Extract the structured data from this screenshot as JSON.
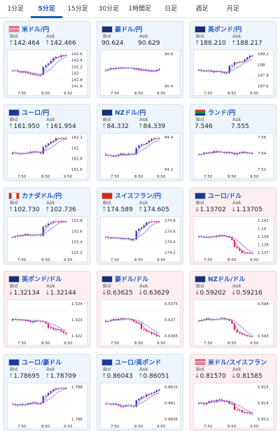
{
  "tabs": [
    {
      "label": "1分足",
      "active": false
    },
    {
      "label": "5分足",
      "active": true
    },
    {
      "label": "15分足",
      "active": false
    },
    {
      "label": "30分足",
      "active": false
    },
    {
      "label": "1時間足",
      "active": false
    },
    {
      "label": "日足",
      "active": false
    },
    {
      "label": "週足",
      "active": false
    },
    {
      "label": "月足",
      "active": false
    }
  ],
  "labels": {
    "bid": "Bid",
    "ask": "Ask"
  },
  "colors": {
    "up_bg": "#eef5fc",
    "down_bg": "#fbeff1",
    "link": "#1b56c4",
    "candle_up": "#1f3ea8",
    "candle_down": "#e0243b",
    "ma1": "#d43ad2",
    "ma2": "#7b86d8"
  },
  "x_ticks": [
    "7:50",
    "8:50",
    "9:50"
  ],
  "cards": [
    {
      "pair": "米ドル/円",
      "flag": "us",
      "dir": "up",
      "bid": "142.464",
      "ask": "142.466",
      "yticks": [
        "142.6",
        "142.4",
        "142.2",
        "142",
        "141.8",
        "141.6"
      ]
    },
    {
      "pair": "豪ドル/円",
      "flag": "au",
      "dir": "flat",
      "bid": "90.624",
      "ask": "90.629",
      "yticks": [
        "90.6",
        "90.4"
      ]
    },
    {
      "pair": "英ポンド/円",
      "flag": "gb",
      "dir": "up",
      "bid": "188.210",
      "ask": "188.217",
      "yticks": [
        "188.2",
        "188",
        "187.8",
        "187.6"
      ]
    },
    {
      "pair": "ユーロ/円",
      "flag": "eu",
      "dir": "up",
      "bid": "161.950",
      "ask": "161.954",
      "yticks": [
        "162.2",
        "162",
        "161.8",
        "161.6"
      ]
    },
    {
      "pair": "NZドル/円",
      "flag": "nz",
      "dir": "up",
      "bid": "84.332",
      "ask": "84.339",
      "yticks": [
        "84.4",
        "84.2"
      ]
    },
    {
      "pair": "ランド/円",
      "flag": "za",
      "dir": "flat",
      "bid": "7.546",
      "ask": "7.555",
      "yticks": [
        "7.56",
        "7.54",
        "7.52"
      ]
    },
    {
      "pair": "カナダドル/円",
      "flag": "ca",
      "dir": "up",
      "bid": "102.730",
      "ask": "102.736",
      "yticks": [
        "102.8",
        "102.6",
        "102.4",
        "102.2"
      ]
    },
    {
      "pair": "スイスフラン/円",
      "flag": "ch",
      "dir": "up",
      "bid": "174.589",
      "ask": "174.605",
      "yticks": [
        "174.8",
        "174.6",
        "174.4",
        "174.2"
      ]
    },
    {
      "pair": "ユーロ/ドル",
      "flag": "eu",
      "dir": "down",
      "bid": "1.13702",
      "ask": "1.13705",
      "yticks": [
        "1.141",
        "1.14",
        "1.139",
        "1.138",
        "1.137"
      ]
    },
    {
      "pair": "英ポンド/ドル",
      "flag": "gb",
      "dir": "down",
      "bid": "1.32134",
      "ask": "1.32144",
      "yticks": [
        "1.324",
        "1.323",
        "1.322"
      ]
    },
    {
      "pair": "豪ドル/ドル",
      "flag": "au",
      "dir": "down",
      "bid": "0.63625",
      "ask": "0.63629",
      "yticks": [
        "0.6375",
        "0.637",
        "0.6365"
      ]
    },
    {
      "pair": "NZドル/ドル",
      "flag": "nz",
      "dir": "down",
      "bid": "0.59202",
      "ask": "0.59216",
      "yticks": [
        "0.594",
        "0.593"
      ]
    },
    {
      "pair": "ユーロ/豪ドル",
      "flag": "eu",
      "dir": "up",
      "bid": "1.78695",
      "ask": "1.78709",
      "yticks": [
        "1.788",
        "1.786"
      ]
    },
    {
      "pair": "ユーロ/英ポンド",
      "flag": "eu",
      "dir": "up",
      "bid": "0.86043",
      "ask": "0.86051",
      "yticks": [
        "0.8615",
        "0.861",
        "0.8605"
      ]
    },
    {
      "pair": "米ドル/スイスフラン",
      "flag": "us",
      "dir": "down",
      "bid": "0.81570",
      "ask": "0.81585",
      "yticks": [
        "0.815",
        "0.814",
        "0.813"
      ]
    }
  ]
}
